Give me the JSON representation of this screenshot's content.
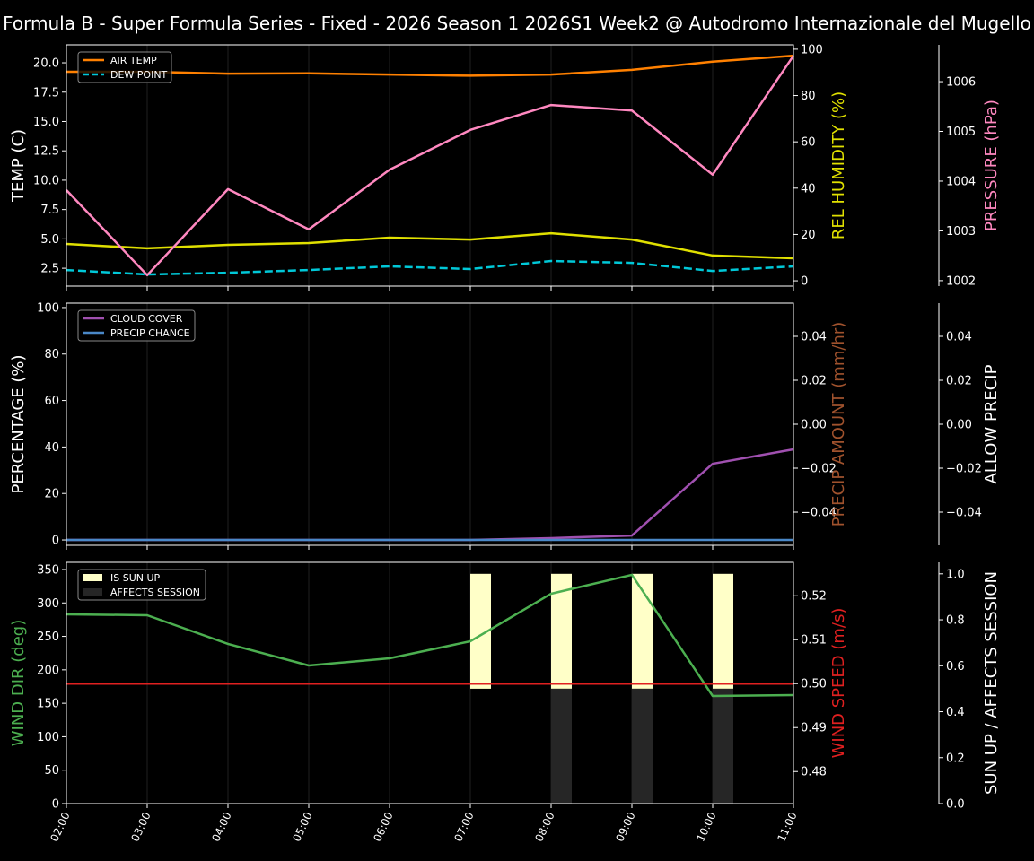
{
  "title": "Formula B - Super Formula Series - Fixed - 2026 Season 1 2026S1 Week2 @ Autodromo Internazionale del Mugello",
  "chart_data": [
    {
      "type": "line",
      "x": [
        "02:00",
        "03:00",
        "04:00",
        "05:00",
        "06:00",
        "07:00",
        "08:00",
        "09:00",
        "10:00",
        "11:00"
      ],
      "grid": "vertical",
      "legend": "top-left",
      "axes": {
        "left": {
          "label": "TEMP (C)",
          "color": "#ffffff",
          "ylim": [
            0.98,
            21.53
          ],
          "ticks": [
            "2.5",
            "5.0",
            "7.5",
            "10.0",
            "12.5",
            "15.0",
            "17.5",
            "20.0"
          ]
        },
        "right": {
          "label": "REL HUMIDITY (%)",
          "color": "#e0e000",
          "ylim": [
            -2.3,
            101.9
          ],
          "ticks": [
            "0",
            "20",
            "40",
            "60",
            "80",
            "100"
          ]
        },
        "right2": {
          "label": "PRESSURE (hPa)",
          "color": "#ff88c0",
          "ylim": [
            1001.89,
            1006.74
          ],
          "ticks": [
            "1002",
            "1003",
            "1004",
            "1005",
            "1006"
          ]
        }
      },
      "series": [
        {
          "name": "AIR TEMP",
          "axis": "left",
          "color": "#ff8000",
          "dash": false,
          "legend": true,
          "values": [
            19.24,
            19.24,
            19.08,
            19.1,
            19.0,
            18.9,
            19.0,
            19.4,
            20.1,
            20.6
          ]
        },
        {
          "name": "DEW POINT",
          "axis": "left",
          "color": "#00c8d8",
          "dash": true,
          "legend": true,
          "values": [
            2.35,
            1.97,
            2.12,
            2.35,
            2.66,
            2.43,
            3.12,
            2.96,
            2.27,
            2.66
          ]
        },
        {
          "axis": "right",
          "color": "#e0e000",
          "dash": false,
          "legend": false,
          "values": [
            15.9,
            14.0,
            15.5,
            16.3,
            18.6,
            17.8,
            20.5,
            17.8,
            10.9,
            9.7
          ]
        },
        {
          "axis": "right2",
          "color": "#ff88c0",
          "dash": false,
          "legend": false,
          "values": [
            1003.82,
            1002.11,
            1003.84,
            1003.03,
            1004.23,
            1005.03,
            1005.53,
            1005.42,
            1004.13,
            1006.52
          ]
        }
      ]
    },
    {
      "type": "line",
      "x": [
        "02:00",
        "03:00",
        "04:00",
        "05:00",
        "06:00",
        "07:00",
        "08:00",
        "09:00",
        "10:00",
        "11:00"
      ],
      "grid": "vertical",
      "legend": "top-left",
      "axes": {
        "left": {
          "label": "PERCENTAGE (%)",
          "color": "#ffffff",
          "ylim": [
            -2.3,
            101.9
          ],
          "ticks": [
            "0",
            "20",
            "40",
            "60",
            "80",
            "100"
          ]
        },
        "right": {
          "label": "PRECIP AMOUNT (mm/hr)",
          "color": "#a0522d",
          "ylim": [
            -0.0551,
            0.0551
          ],
          "ticks": [
            "−0.04",
            "−0.02",
            "0.00",
            "0.02",
            "0.04"
          ]
        },
        "right2": {
          "label": "ALLOW PRECIP",
          "color": "#ffffff",
          "ylim": [
            -0.0551,
            0.0551
          ],
          "ticks": [
            "−0.04",
            "−0.02",
            "0.00",
            "0.02",
            "0.04"
          ]
        }
      },
      "series": [
        {
          "name": "CLOUD COVER",
          "axis": "left",
          "color": "#a050b0",
          "dash": false,
          "legend": true,
          "values": [
            0,
            0,
            0,
            0,
            0,
            0,
            0.8,
            1.9,
            32.8,
            39.0
          ]
        },
        {
          "name": "PRECIP CHANCE",
          "axis": "left",
          "color": "#4a88c8",
          "dash": false,
          "legend": true,
          "values": [
            0,
            0,
            0,
            0,
            0,
            0,
            0,
            0,
            0,
            0
          ]
        }
      ]
    },
    {
      "type": "line",
      "x": [
        "02:00",
        "03:00",
        "04:00",
        "05:00",
        "06:00",
        "07:00",
        "08:00",
        "09:00",
        "10:00",
        "11:00"
      ],
      "grid": "vertical",
      "legend": "top-left",
      "axes": {
        "left": {
          "label": "WIND DIR (deg)",
          "color": "#4caf50",
          "ylim": [
            0,
            360.7
          ],
          "ticks": [
            "0",
            "50",
            "100",
            "150",
            "200",
            "250",
            "300",
            "350"
          ]
        },
        "right": {
          "label": "WIND SPEED (m/s)",
          "color": "#e02020",
          "ylim": [
            0.4727,
            0.5276
          ],
          "ticks": [
            "0.48",
            "0.49",
            "0.50",
            "0.51",
            "0.52"
          ]
        },
        "right2": {
          "label": "SUN UP / AFFECTS SESSION",
          "color": "#ffffff",
          "ylim": [
            0,
            1.05
          ],
          "ticks": [
            "0.0",
            "0.2",
            "0.4",
            "0.6",
            "0.8",
            "1.0"
          ]
        }
      },
      "bars": [
        {
          "name": "IS SUN UP",
          "color": "#ffffc8",
          "range": [
            0.5,
            1.0
          ],
          "values": [
            0,
            0,
            0,
            0,
            0,
            1,
            1,
            1,
            1,
            0
          ]
        },
        {
          "name": "AFFECTS SESSION",
          "color": "#262626",
          "range": [
            0,
            0.5
          ],
          "values": [
            0,
            0,
            0,
            0,
            0,
            0,
            1,
            1,
            1,
            0
          ]
        }
      ],
      "series": [
        {
          "axis": "left",
          "color": "#4caf50",
          "dash": false,
          "legend": false,
          "values": [
            283,
            281.6,
            238.7,
            206.5,
            217.2,
            242.7,
            313.8,
            342,
            160.9,
            162.3
          ]
        },
        {
          "axis": "right",
          "color": "#e02020",
          "dash": false,
          "legend": false,
          "values": [
            0.5,
            0.5,
            0.5,
            0.5,
            0.5,
            0.5,
            0.5,
            0.5,
            0.5,
            0.5
          ]
        }
      ]
    }
  ]
}
